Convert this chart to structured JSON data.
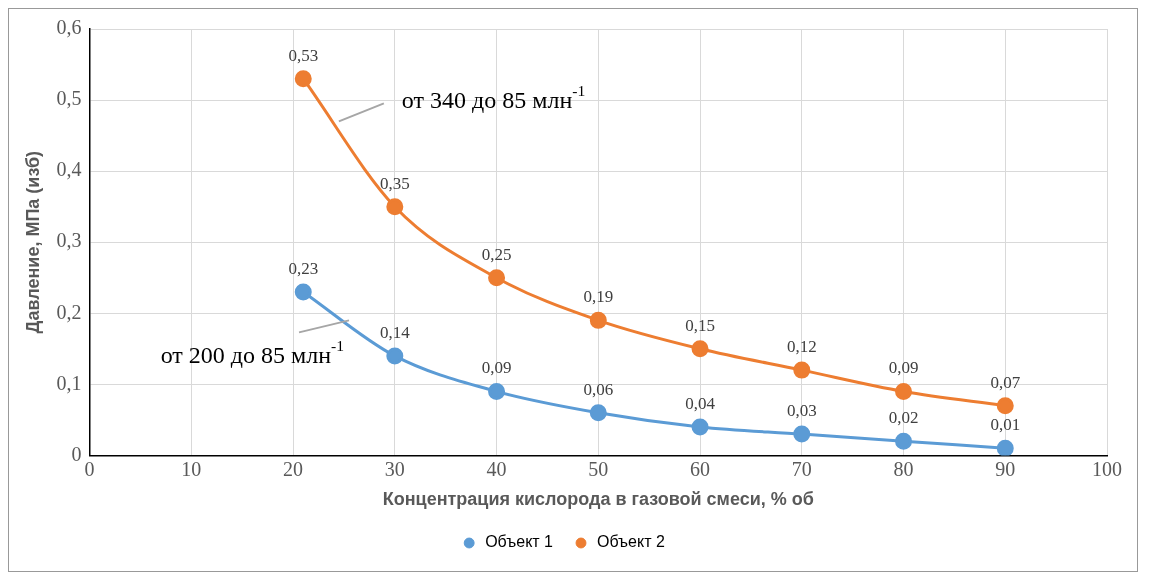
{
  "chart_data": {
    "type": "line",
    "xlabel": "Концентрация кислорода в газовой смеси, % об",
    "ylabel": "Давление, МПа (изб)",
    "x": [
      21,
      30,
      40,
      50,
      60,
      70,
      80,
      90
    ],
    "series": [
      {
        "name": "Объект 1",
        "color": "#5b9bd5",
        "values": [
          0.23,
          0.14,
          0.09,
          0.06,
          0.04,
          0.03,
          0.02,
          0.01
        ],
        "value_labels": [
          "0,23",
          "0,14",
          "0,09",
          "0,06",
          "0,04",
          "0,03",
          "0,02",
          "0,01"
        ]
      },
      {
        "name": "Объект 2",
        "color": "#ed7d31",
        "values": [
          0.53,
          0.35,
          0.25,
          0.19,
          0.15,
          0.12,
          0.09,
          0.07
        ],
        "value_labels": [
          "0,53",
          "0,35",
          "0,25",
          "0,19",
          "0,15",
          "0,12",
          "0,09",
          "0,07"
        ]
      }
    ],
    "xlim": [
      0,
      100
    ],
    "xticks": [
      0,
      10,
      20,
      30,
      40,
      50,
      60,
      70,
      80,
      90,
      100
    ],
    "ylim": [
      0,
      0.6
    ],
    "yticks": [
      0,
      {
        "value": 0.1,
        "label": "0,1"
      },
      {
        "value": 0.2,
        "label": "0,2"
      },
      {
        "value": 0.3,
        "label": "0,3"
      },
      {
        "value": 0.4,
        "label": "0,4"
      },
      {
        "value": 0.5,
        "label": "0,5"
      },
      {
        "value": 0.6,
        "label": "0,6"
      }
    ],
    "annotations": [
      {
        "text": "от 340 до 85 млн$^{-1}$",
        "x": 24.5,
        "y": 0.47
      },
      {
        "text": "от 200 до 85 млн$^{-1}$",
        "x": 25.5,
        "y": 0.19
      }
    ],
    "grid": true,
    "legend": "bottom",
    "marker": "circle",
    "line_style": "solid"
  }
}
